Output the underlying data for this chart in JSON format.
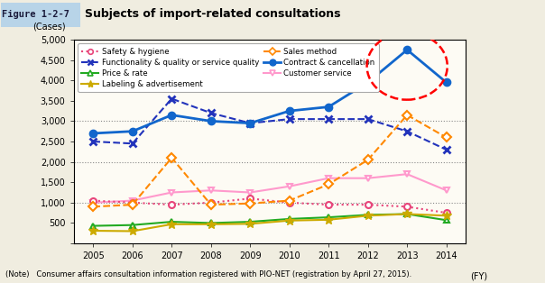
{
  "years": [
    2005,
    2006,
    2007,
    2008,
    2009,
    2010,
    2011,
    2012,
    2013,
    2014
  ],
  "safety_hygiene": [
    1050,
    1000,
    950,
    1000,
    1100,
    1000,
    950,
    950,
    900,
    750
  ],
  "functionality_quality": [
    2500,
    2450,
    3550,
    3200,
    2950,
    3050,
    3050,
    3050,
    2750,
    2300
  ],
  "price_rate": [
    430,
    450,
    530,
    500,
    530,
    600,
    640,
    700,
    720,
    570
  ],
  "labeling_advertisement": [
    310,
    300,
    470,
    470,
    480,
    560,
    580,
    680,
    720,
    680
  ],
  "sales_method": [
    900,
    950,
    2100,
    950,
    980,
    1050,
    1450,
    2050,
    3150,
    2600
  ],
  "contract_cancellation": [
    2700,
    2750,
    3150,
    3000,
    2950,
    3250,
    3350,
    3950,
    4750,
    3950
  ],
  "customer_service": [
    1000,
    1050,
    1250,
    1300,
    1250,
    1400,
    1600,
    1600,
    1700,
    1300
  ],
  "title": "Subjects of import-related consultations",
  "figure_label": "Figure 1-2-7",
  "ylabel": "(Cases)",
  "xlabel": "(FY)",
  "note": "(Note)   Consumer affairs consultation information registered with PIO-NET (registration by April 27, 2015).",
  "ylim": [
    0,
    5000
  ],
  "bg_color": "#f0ede0",
  "plot_bg": "#fdfbf4",
  "header_bg": "#b8d4e8",
  "color_safety": "#e8457a",
  "color_functionality": "#2233bb",
  "color_price": "#22aa22",
  "color_labeling": "#ccaa00",
  "color_sales": "#ff8800",
  "color_contract": "#1166cc",
  "color_customer": "#ff99cc"
}
